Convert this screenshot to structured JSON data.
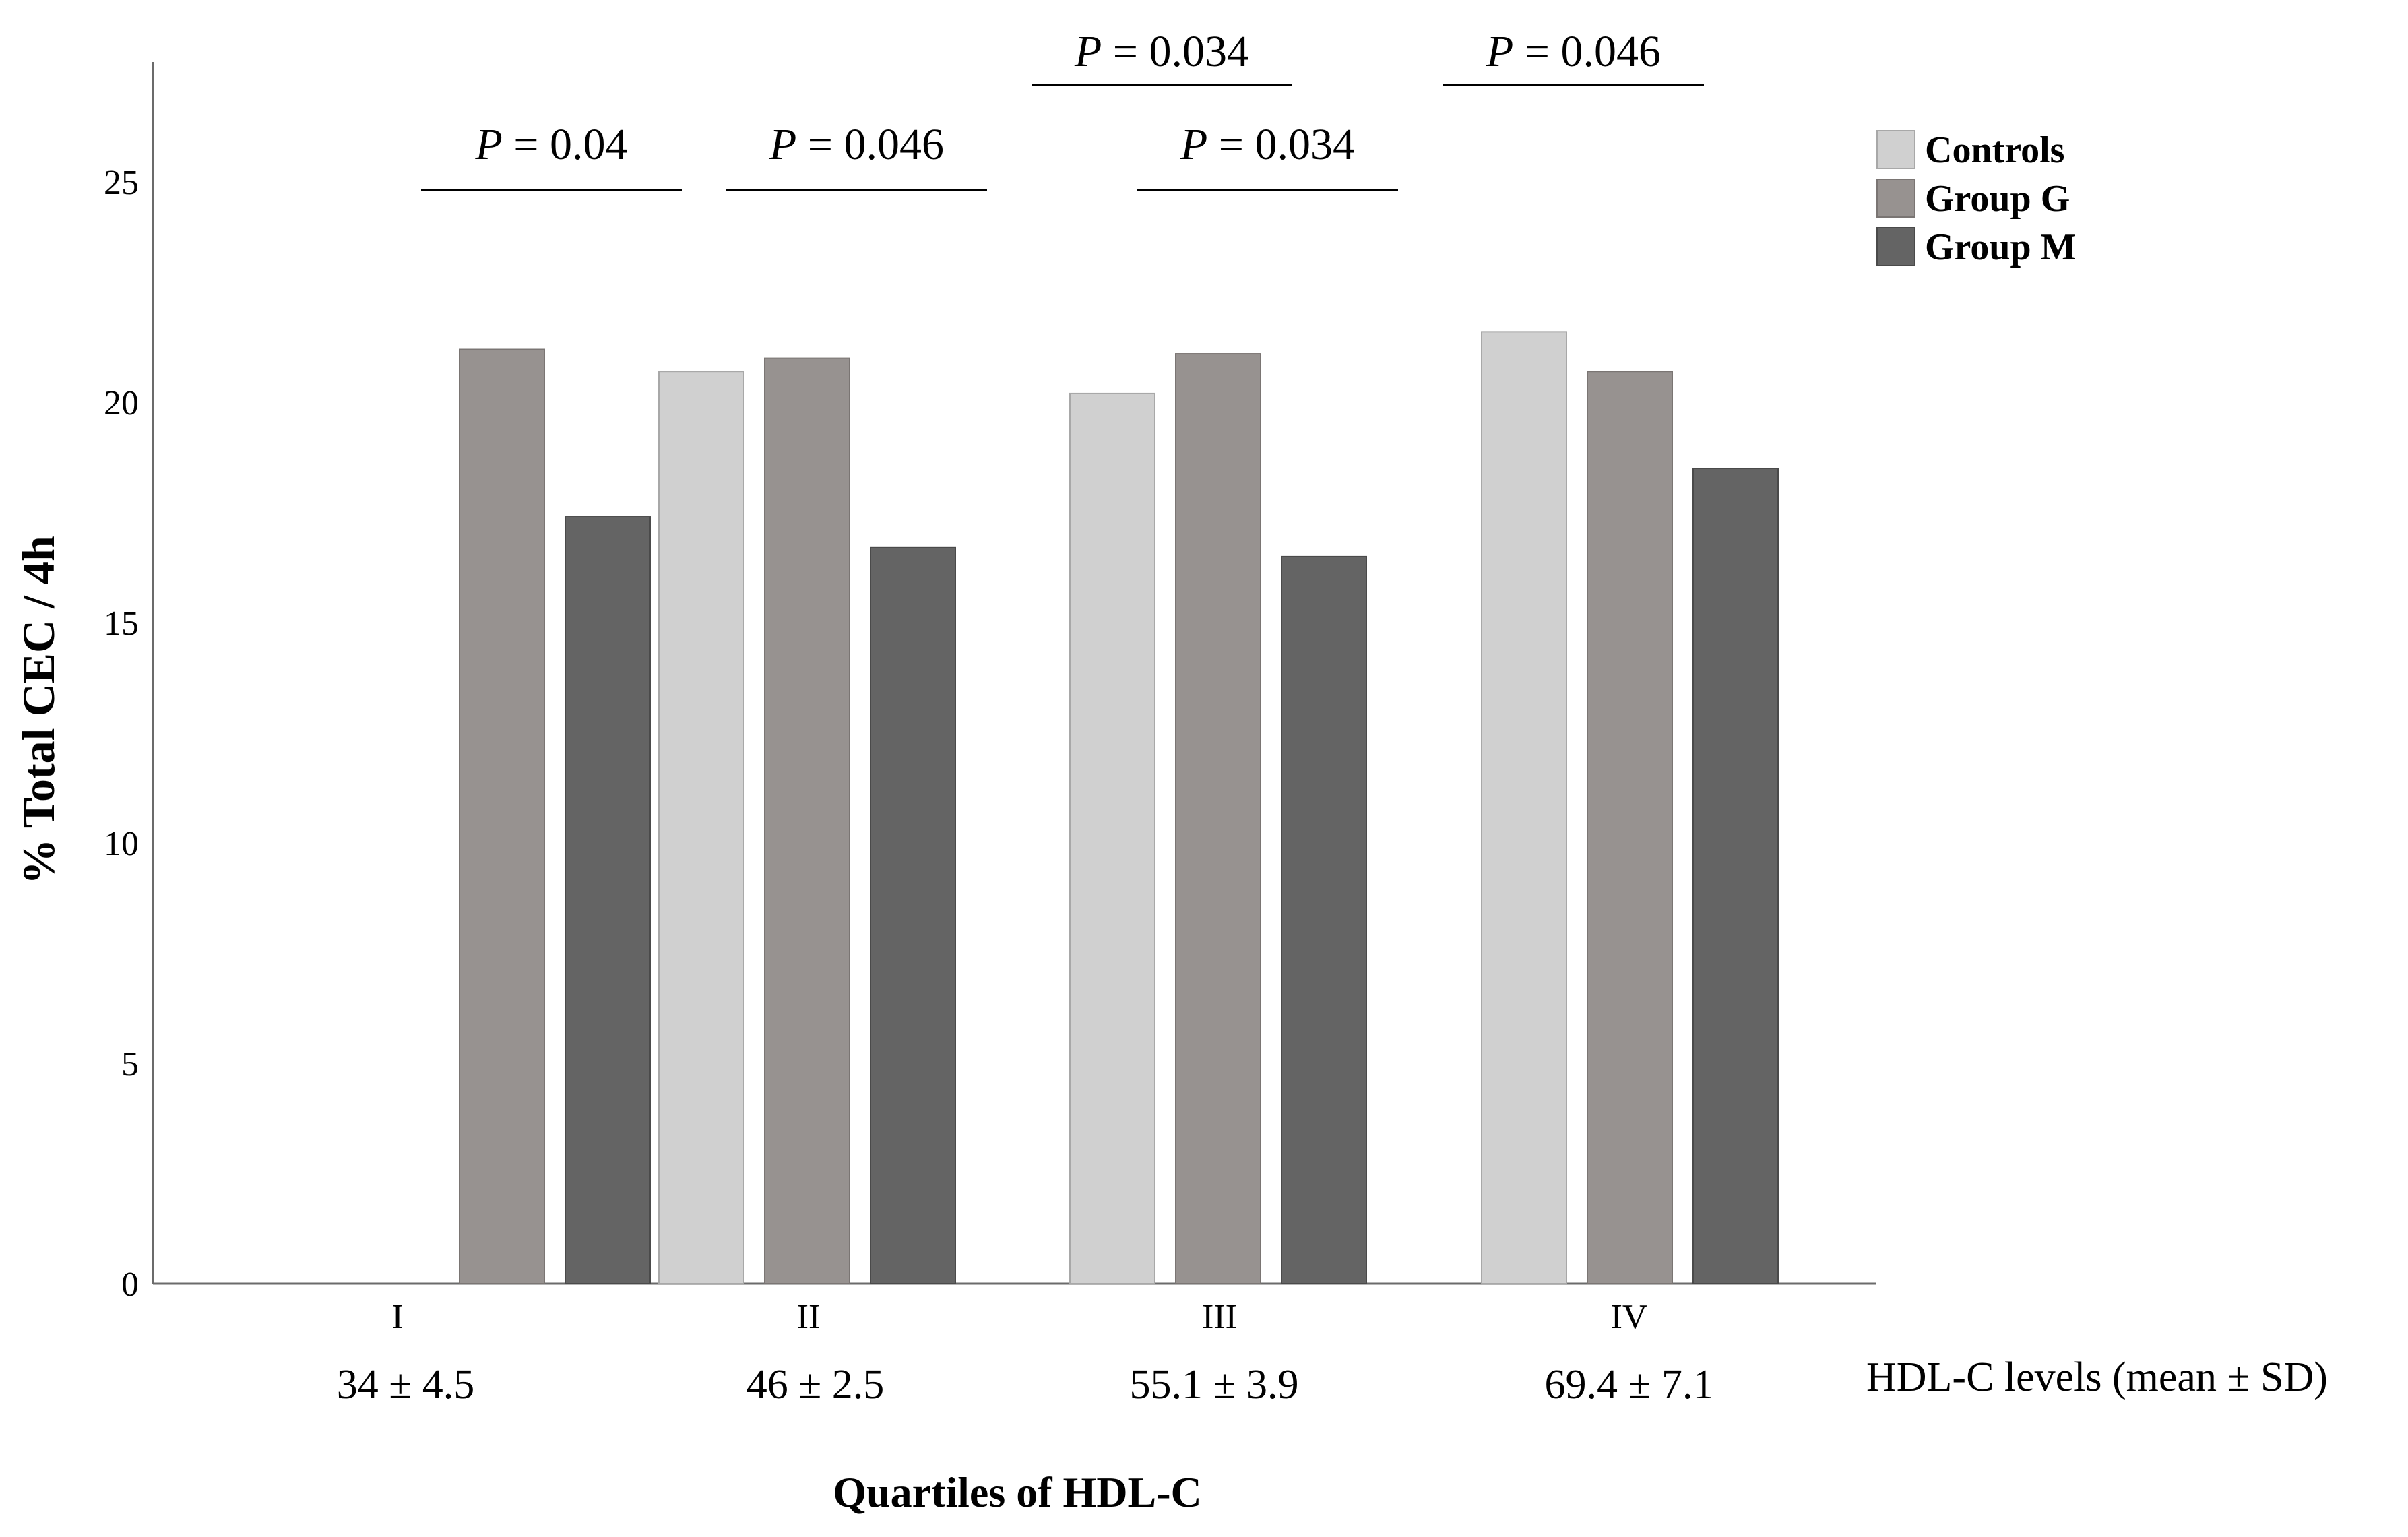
{
  "chart_data": {
    "type": "bar",
    "ylabel": "% Total CEC / 4h",
    "xlabel": "Quartiles of HDL-C",
    "ylim": [
      0,
      27
    ],
    "yticks": [
      0,
      5,
      10,
      15,
      20,
      25
    ],
    "grid": false,
    "categories": [
      "I",
      "II",
      "III",
      "IV"
    ],
    "sublabels": [
      "34 ± 4.5",
      "46 ± 2.5",
      "55.1 ± 3.9",
      "69.4 ± 7.1"
    ],
    "sublabel_caption": "HDL-C levels (mean ± SD)",
    "legend_position": "top-right",
    "series": [
      {
        "name": "Controls",
        "color": "#d0d0d0",
        "values": [
          null,
          20.7,
          20.2,
          21.6
        ]
      },
      {
        "name": "Group G",
        "color": "#979290",
        "values": [
          21.2,
          21.0,
          21.1,
          20.7
        ]
      },
      {
        "name": "Group M",
        "color": "#646464",
        "values": [
          17.4,
          16.7,
          16.5,
          18.5
        ]
      }
    ],
    "annotations": [
      {
        "text": "P = 0.04",
        "category": 0,
        "from_series": 1,
        "to_series": 2,
        "level": 0
      },
      {
        "text": "P = 0.046",
        "category": 1,
        "from_series": 1,
        "to_series": 2,
        "level": 0
      },
      {
        "text": "P = 0.034",
        "category": 2,
        "from_series": 0,
        "to_series": 1,
        "level": 1
      },
      {
        "text": "P = 0.034",
        "category": 2,
        "from_series": 1,
        "to_series": 2,
        "level": 0
      },
      {
        "text": "P = 0.046",
        "category": 3,
        "from_series": 0,
        "to_series": 1,
        "level": 1
      }
    ]
  }
}
